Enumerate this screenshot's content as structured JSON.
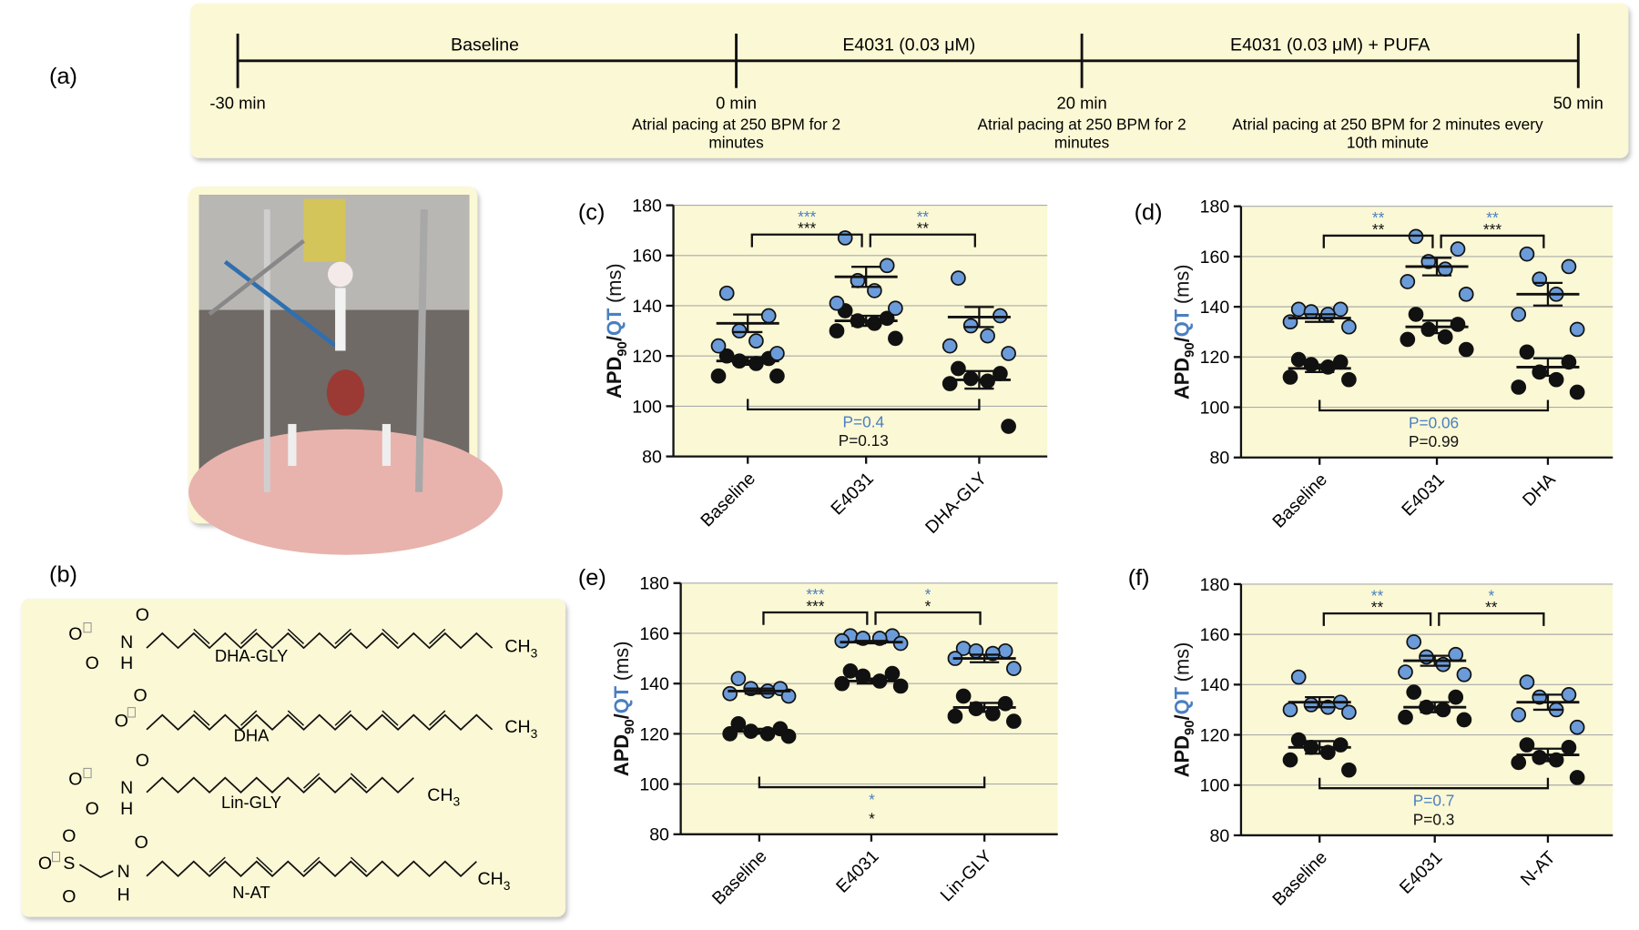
{
  "panel_labels": [
    "(a)",
    "(b)",
    "(c)",
    "(d)",
    "(e)",
    "(f)"
  ],
  "timeline": {
    "phases": [
      "Baseline",
      "E4031 (0.03 μM)",
      "E4031 (0.03 μM) + PUFA"
    ],
    "times": [
      "-30 min",
      "0 min",
      "20 min",
      "50 min"
    ],
    "notes": [
      [
        "Atrial pacing at 250 BPM for 2",
        "minutes"
      ],
      [
        "Atrial pacing at 250 BPM for 2",
        "minutes"
      ],
      [
        "Atrial pacing at 250 BPM for 2 minutes every",
        "10th minute"
      ]
    ]
  },
  "structures": {
    "names": [
      "DHA-GLY",
      "DHA",
      "Lin-GLY",
      "N-AT"
    ],
    "atoms": {
      "oxygen": "O",
      "nitrogen": "N",
      "hydrogen": "H",
      "sulfur": "S",
      "methyl": "CH",
      "methyl_sub": "3"
    }
  },
  "chart_data": [
    {
      "type": "strip",
      "categories": [
        "Baseline",
        "E4031",
        "DHA-GLY"
      ],
      "y_label": [
        "APD",
        "90",
        "/",
        "QT",
        "(ms)"
      ],
      "ylim": [
        80,
        180
      ],
      "yticks": [
        80,
        100,
        120,
        140,
        160,
        180
      ],
      "grid": true,
      "series": [
        {
          "color": "#111111",
          "values": [
            [
              120,
              119,
              118,
              117,
              112,
              112
            ],
            [
              138,
              135,
              134,
              133,
              130,
              127
            ],
            [
              115,
              113,
              111,
              110,
              109,
              92
            ]
          ],
          "mean": [
            118,
            134,
            110.5
          ],
          "sem": [
            1.5,
            2,
            3.5
          ]
        },
        {
          "color": "#6b9bd8",
          "values": [
            [
              145,
              136,
              130,
              126,
              124,
              121
            ],
            [
              167,
              156,
              150,
              146,
              141,
              139
            ],
            [
              151,
              136,
              132,
              128,
              124,
              121
            ]
          ],
          "mean": [
            133,
            151.5,
            135.5
          ],
          "sem": [
            3.5,
            4,
            4
          ]
        }
      ],
      "comparisons": [
        {
          "qt": "***",
          "apd": "***"
        },
        {
          "qt": "**",
          "apd": "**"
        }
      ],
      "overall": {
        "qt": "P=0.4",
        "apd": "P=0.13"
      }
    },
    {
      "type": "strip",
      "categories": [
        "Baseline",
        "E4031",
        "DHA"
      ],
      "y_label": [
        "APD",
        "90",
        "/",
        "QT",
        "(ms)"
      ],
      "ylim": [
        80,
        180
      ],
      "yticks": [
        80,
        100,
        120,
        140,
        160,
        180
      ],
      "grid": true,
      "series": [
        {
          "color": "#111111",
          "values": [
            [
              119,
              118,
              117,
              116,
              112,
              111
            ],
            [
              137,
              133,
              131,
              128,
              127,
              123
            ],
            [
              122,
              118,
              114,
              111,
              108,
              106
            ]
          ],
          "mean": [
            115.5,
            132,
            116
          ],
          "sem": [
            1.5,
            2.5,
            3.5
          ]
        },
        {
          "color": "#6b9bd8",
          "values": [
            [
              139,
              139,
              138,
              137,
              134,
              132
            ],
            [
              168,
              163,
              158,
              155,
              150,
              145
            ],
            [
              161,
              156,
              151,
              145,
              137,
              131
            ]
          ],
          "mean": [
            135.5,
            156,
            145
          ],
          "sem": [
            1.5,
            3.5,
            4.5
          ]
        }
      ],
      "comparisons": [
        {
          "qt": "**",
          "apd": "**"
        },
        {
          "qt": "**",
          "apd": "***"
        }
      ],
      "overall": {
        "qt": "P=0.06",
        "apd": "P=0.99"
      }
    },
    {
      "type": "strip",
      "categories": [
        "Baseline",
        "E4031",
        "Lin-GLY"
      ],
      "y_label": [
        "APD",
        "90",
        "/",
        "QT",
        "(ms)"
      ],
      "ylim": [
        80,
        180
      ],
      "yticks": [
        80,
        100,
        120,
        140,
        160,
        180
      ],
      "grid": true,
      "series": [
        {
          "color": "#111111",
          "values": [
            [
              124,
              122,
              121,
              120,
              120,
              119
            ],
            [
              145,
              144,
              143,
              141,
              140,
              139
            ],
            [
              135,
              132,
              130,
              128,
              127,
              125
            ]
          ],
          "mean": [
            121,
            141,
            130.5
          ],
          "sem": [
            1,
            1,
            1.8
          ]
        },
        {
          "color": "#6b9bd8",
          "values": [
            [
              142,
              138,
              138,
              137,
              136,
              135
            ],
            [
              159,
              159,
              158,
              158,
              157,
              156
            ],
            [
              154,
              153,
              153,
              152,
              150,
              146
            ]
          ],
          "mean": [
            137,
            156.5,
            150
          ],
          "sem": [
            1,
            0.5,
            1.5
          ]
        }
      ],
      "comparisons": [
        {
          "qt": "***",
          "apd": "***"
        },
        {
          "qt": "*",
          "apd": "*"
        }
      ],
      "overall": {
        "qt": "*",
        "apd": "*"
      }
    },
    {
      "type": "strip",
      "categories": [
        "Baseline",
        "E4031",
        "N-AT"
      ],
      "y_label": [
        "APD",
        "90",
        "/",
        "QT",
        "(ms)"
      ],
      "ylim": [
        80,
        180
      ],
      "yticks": [
        80,
        100,
        120,
        140,
        160,
        180
      ],
      "grid": true,
      "series": [
        {
          "color": "#111111",
          "values": [
            [
              118,
              116,
              115,
              113,
              110,
              106
            ],
            [
              137,
              135,
              131,
              130,
              127,
              126
            ],
            [
              116,
              115,
              111,
              110,
              109,
              103
            ]
          ],
          "mean": [
            115,
            131,
            112
          ],
          "sem": [
            2.5,
            2,
            2.5
          ]
        },
        {
          "color": "#6b9bd8",
          "values": [
            [
              143,
              133,
              132,
              131,
              130,
              129
            ],
            [
              157,
              152,
              151,
              148,
              145,
              144
            ],
            [
              141,
              136,
              135,
              130,
              128,
              123
            ]
          ],
          "mean": [
            133,
            149.5,
            133
          ],
          "sem": [
            2,
            2,
            3
          ]
        }
      ],
      "comparisons": [
        {
          "qt": "**",
          "apd": "**"
        },
        {
          "qt": "*",
          "apd": "**"
        }
      ],
      "overall": {
        "qt": "P=0.7",
        "apd": "P=0.3"
      }
    }
  ]
}
